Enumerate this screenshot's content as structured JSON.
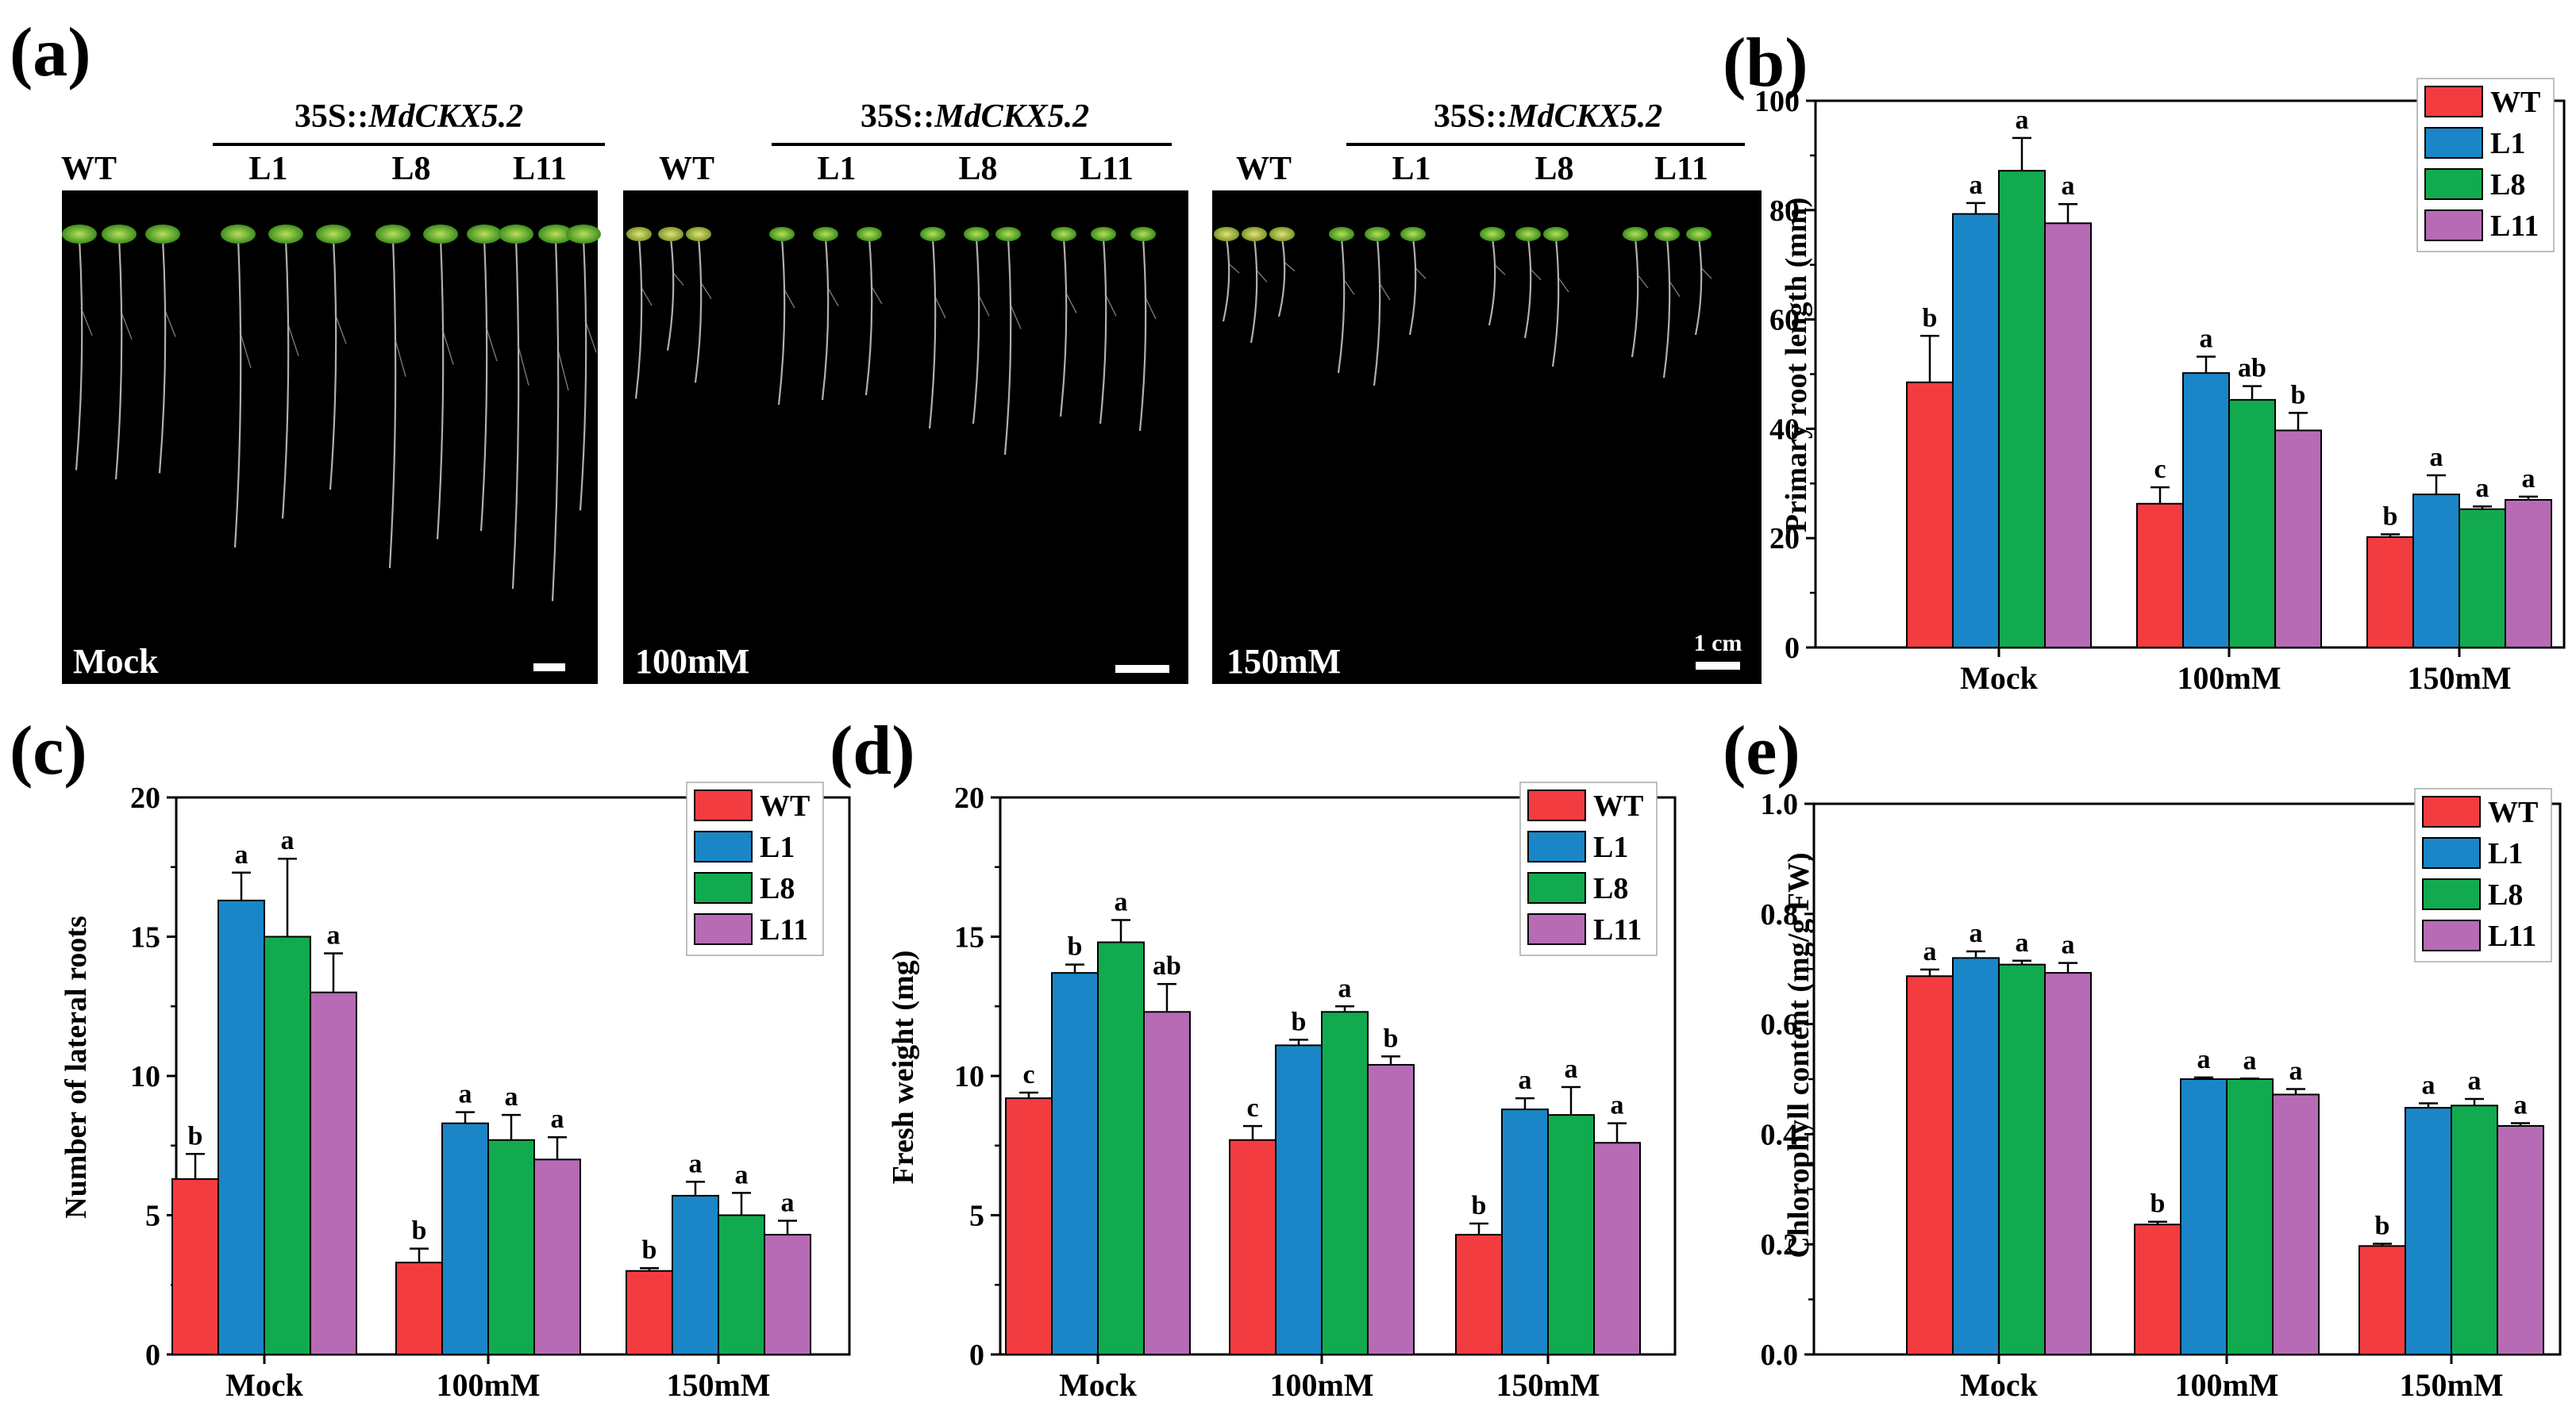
{
  "colors": {
    "WT": "#f23c40",
    "L1": "#1a86c7",
    "L8": "#12aa4e",
    "L11": "#b66bb4"
  },
  "panel_a": {
    "label": "(a)",
    "transgene_prefix": "35S::",
    "transgene_gene": "MdCKX5.2",
    "lines": [
      "WT",
      "L1",
      "L8",
      "L11"
    ],
    "conditions": [
      "Mock",
      "100mM",
      "150mM"
    ],
    "scale_bar": "1 cm"
  },
  "chart_data": [
    {
      "id": "b",
      "label": "(b)",
      "type": "bar",
      "ylabel": "Primary root length (mm)",
      "categories": [
        "Mock",
        "100mM",
        "150mM"
      ],
      "ylim": [
        0,
        100
      ],
      "ticks": [
        0,
        20,
        40,
        60,
        80,
        100
      ],
      "decimals": 0,
      "series": [
        {
          "name": "WT",
          "values": [
            48.5,
            26.3,
            20.2
          ],
          "errors": [
            8.5,
            3.0,
            0.5
          ],
          "letters": [
            "b",
            "c",
            "b"
          ]
        },
        {
          "name": "L1",
          "values": [
            79.3,
            50.2,
            28.0
          ],
          "errors": [
            2.0,
            3.0,
            3.5
          ],
          "letters": [
            "a",
            "a",
            "a"
          ]
        },
        {
          "name": "L8",
          "values": [
            87.2,
            45.3,
            25.3
          ],
          "errors": [
            6.0,
            2.5,
            0.5
          ],
          "letters": [
            "a",
            "ab",
            "a"
          ]
        },
        {
          "name": "L11",
          "values": [
            77.6,
            39.7,
            27.0
          ],
          "errors": [
            3.5,
            3.2,
            0.6
          ],
          "letters": [
            "a",
            "b",
            "a"
          ]
        }
      ]
    },
    {
      "id": "c",
      "label": "(c)",
      "type": "bar",
      "ylabel": "Number of lateral roots",
      "categories": [
        "Mock",
        "100mM",
        "150mM"
      ],
      "ylim": [
        0,
        20
      ],
      "ticks": [
        0,
        5,
        10,
        15,
        20
      ],
      "decimals": 0,
      "series": [
        {
          "name": "WT",
          "values": [
            6.3,
            3.3,
            3.0
          ],
          "errors": [
            0.9,
            0.5,
            0.1
          ],
          "letters": [
            "b",
            "b",
            "b"
          ]
        },
        {
          "name": "L1",
          "values": [
            16.3,
            8.3,
            5.7
          ],
          "errors": [
            1.0,
            0.4,
            0.5
          ],
          "letters": [
            "a",
            "a",
            "a"
          ]
        },
        {
          "name": "L8",
          "values": [
            15.0,
            7.7,
            5.0
          ],
          "errors": [
            2.8,
            0.9,
            0.8
          ],
          "letters": [
            "a",
            "a",
            "a"
          ]
        },
        {
          "name": "L11",
          "values": [
            13.0,
            7.0,
            4.3
          ],
          "errors": [
            1.4,
            0.8,
            0.5
          ],
          "letters": [
            "a",
            "a",
            "a"
          ]
        }
      ]
    },
    {
      "id": "d",
      "label": "(d)",
      "type": "bar",
      "ylabel": "Fresh weight (mg)",
      "categories": [
        "Mock",
        "100mM",
        "150mM"
      ],
      "ylim": [
        0,
        20
      ],
      "ticks": [
        0,
        5,
        10,
        15,
        20
      ],
      "decimals": 0,
      "series": [
        {
          "name": "WT",
          "values": [
            9.2,
            7.7,
            4.3
          ],
          "errors": [
            0.2,
            0.5,
            0.4
          ],
          "letters": [
            "c",
            "c",
            "b"
          ]
        },
        {
          "name": "L1",
          "values": [
            13.7,
            11.1,
            8.8
          ],
          "errors": [
            0.3,
            0.2,
            0.4
          ],
          "letters": [
            "b",
            "b",
            "a"
          ]
        },
        {
          "name": "L8",
          "values": [
            14.8,
            12.3,
            8.6
          ],
          "errors": [
            0.8,
            0.2,
            1.0
          ],
          "letters": [
            "a",
            "a",
            "a"
          ]
        },
        {
          "name": "L11",
          "values": [
            12.3,
            10.4,
            7.6
          ],
          "errors": [
            1.0,
            0.3,
            0.7
          ],
          "letters": [
            "ab",
            "b",
            "a"
          ]
        }
      ]
    },
    {
      "id": "e",
      "label": "(e)",
      "type": "bar",
      "ylabel": "Chlorophyll content (mg/g FW)",
      "categories": [
        "Mock",
        "100mM",
        "150mM"
      ],
      "ylim": [
        0,
        1.0
      ],
      "ticks": [
        0,
        0.2,
        0.4,
        0.6,
        0.8,
        1.0
      ],
      "decimals": 1,
      "series": [
        {
          "name": "WT",
          "values": [
            0.687,
            0.236,
            0.197
          ],
          "errors": [
            0.012,
            0.005,
            0.004
          ],
          "letters": [
            "a",
            "b",
            "b"
          ]
        },
        {
          "name": "L1",
          "values": [
            0.72,
            0.5,
            0.448
          ],
          "errors": [
            0.012,
            0.003,
            0.008
          ],
          "letters": [
            "a",
            "a",
            "a"
          ]
        },
        {
          "name": "L8",
          "values": [
            0.708,
            0.5,
            0.452
          ],
          "errors": [
            0.007,
            0.001,
            0.012
          ],
          "letters": [
            "a",
            "a",
            "a"
          ]
        },
        {
          "name": "L11",
          "values": [
            0.693,
            0.472,
            0.415
          ],
          "errors": [
            0.018,
            0.01,
            0.005
          ],
          "letters": [
            "a",
            "a",
            "a"
          ]
        }
      ]
    }
  ]
}
